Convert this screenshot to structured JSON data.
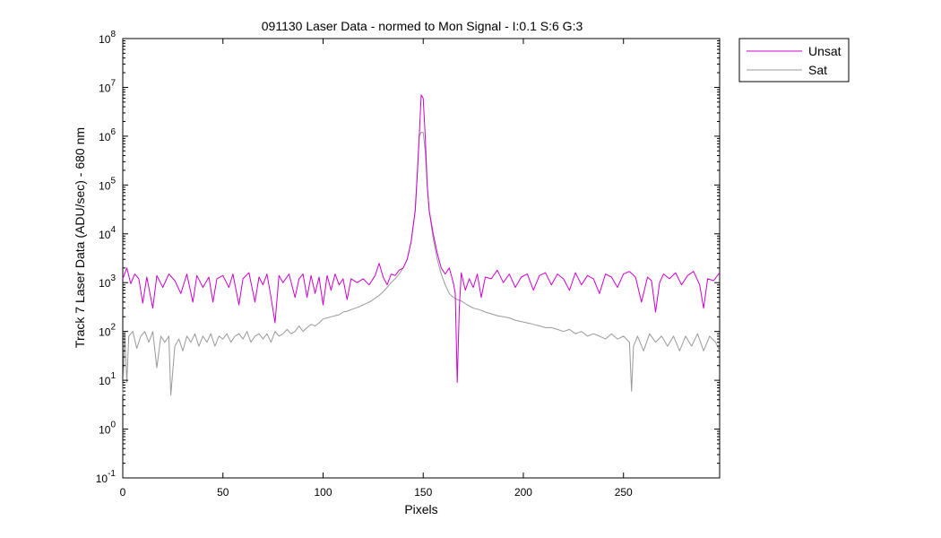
{
  "chart_data": {
    "type": "line",
    "title": "091130 Laser Data - normed to Mon Signal -   I:0.1  S:6  G:3",
    "xlabel": "Pixels",
    "ylabel": "Track 7 Laser Data (ADU/sec) - 680 nm",
    "xlim": [
      0,
      298
    ],
    "ylim": [
      0.1,
      100000000
    ],
    "yscale": "log",
    "grid": false,
    "legend_position": "outside-top-right",
    "xticks": [
      0,
      50,
      100,
      150,
      200,
      250
    ],
    "xtick_labels": [
      "0",
      "50",
      "100",
      "150",
      "200",
      "250"
    ],
    "ytick_exponents": [
      -1,
      0,
      1,
      2,
      3,
      4,
      5,
      6,
      7,
      8
    ],
    "ytick_base": "10",
    "series": [
      {
        "name": "Unsat",
        "color": "#cc00cc",
        "points": [
          [
            0,
            1200
          ],
          [
            2,
            2000
          ],
          [
            4,
            950
          ],
          [
            6,
            1500
          ],
          [
            8,
            1200
          ],
          [
            10,
            380
          ],
          [
            12,
            1300
          ],
          [
            15,
            300
          ],
          [
            17,
            1400
          ],
          [
            20,
            800
          ],
          [
            23,
            1500
          ],
          [
            26,
            1100
          ],
          [
            29,
            600
          ],
          [
            32,
            1500
          ],
          [
            35,
            400
          ],
          [
            37,
            1400
          ],
          [
            40,
            800
          ],
          [
            43,
            1300
          ],
          [
            45,
            400
          ],
          [
            47,
            1200
          ],
          [
            50,
            1400
          ],
          [
            53,
            800
          ],
          [
            55,
            1500
          ],
          [
            58,
            350
          ],
          [
            60,
            1200
          ],
          [
            63,
            1600
          ],
          [
            66,
            400
          ],
          [
            68,
            1300
          ],
          [
            70,
            900
          ],
          [
            72,
            1500
          ],
          [
            74,
            500
          ],
          [
            76,
            150
          ],
          [
            78,
            1400
          ],
          [
            80,
            1000
          ],
          [
            83,
            1500
          ],
          [
            86,
            500
          ],
          [
            88,
            1200
          ],
          [
            90,
            1500
          ],
          [
            92,
            500
          ],
          [
            94,
            1400
          ],
          [
            96,
            600
          ],
          [
            98,
            1300
          ],
          [
            100,
            350
          ],
          [
            102,
            1400
          ],
          [
            104,
            700
          ],
          [
            106,
            1500
          ],
          [
            108,
            900
          ],
          [
            110,
            1200
          ],
          [
            112,
            450
          ],
          [
            114,
            1200
          ],
          [
            117,
            1000
          ],
          [
            120,
            1200
          ],
          [
            123,
            900
          ],
          [
            126,
            1400
          ],
          [
            128,
            2500
          ],
          [
            130,
            1300
          ],
          [
            132,
            900
          ],
          [
            134,
            1500
          ],
          [
            136,
            1400
          ],
          [
            138,
            1800
          ],
          [
            140,
            2000
          ],
          [
            142,
            3000
          ],
          [
            144,
            7000
          ],
          [
            146,
            30000
          ],
          [
            147,
            150000
          ],
          [
            148,
            1000000
          ],
          [
            149,
            7000000
          ],
          [
            150,
            6000000
          ],
          [
            151,
            1000000
          ],
          [
            152,
            100000
          ],
          [
            153,
            30000
          ],
          [
            155,
            10000
          ],
          [
            157,
            4000
          ],
          [
            159,
            2000
          ],
          [
            161,
            1500
          ],
          [
            163,
            2000
          ],
          [
            165,
            1000
          ],
          [
            166,
            600
          ],
          [
            167,
            9
          ],
          [
            168,
            300
          ],
          [
            169,
            1600
          ],
          [
            171,
            700
          ],
          [
            173,
            1200
          ],
          [
            175,
            800
          ],
          [
            177,
            1500
          ],
          [
            179,
            500
          ],
          [
            181,
            1300
          ],
          [
            184,
            1200
          ],
          [
            187,
            1800
          ],
          [
            190,
            1000
          ],
          [
            193,
            1500
          ],
          [
            196,
            800
          ],
          [
            199,
            1300
          ],
          [
            202,
            1500
          ],
          [
            205,
            700
          ],
          [
            208,
            1400
          ],
          [
            211,
            1600
          ],
          [
            214,
            900
          ],
          [
            217,
            1500
          ],
          [
            220,
            1200
          ],
          [
            223,
            700
          ],
          [
            226,
            1600
          ],
          [
            229,
            900
          ],
          [
            232,
            1400
          ],
          [
            235,
            1200
          ],
          [
            238,
            600
          ],
          [
            241,
            1500
          ],
          [
            244,
            1300
          ],
          [
            247,
            800
          ],
          [
            250,
            1500
          ],
          [
            253,
            1700
          ],
          [
            256,
            1300
          ],
          [
            259,
            400
          ],
          [
            262,
            1300
          ],
          [
            264,
            1100
          ],
          [
            266,
            250
          ],
          [
            268,
            1000
          ],
          [
            270,
            1500
          ],
          [
            273,
            1200
          ],
          [
            276,
            1600
          ],
          [
            279,
            900
          ],
          [
            282,
            1400
          ],
          [
            285,
            1700
          ],
          [
            288,
            900
          ],
          [
            290,
            300
          ],
          [
            292,
            1200
          ],
          [
            295,
            1100
          ],
          [
            298,
            1600
          ]
        ]
      },
      {
        "name": "Sat",
        "color": "#999999",
        "points": [
          [
            0,
            5
          ],
          [
            1,
            100
          ],
          [
            2,
            9
          ],
          [
            3,
            80
          ],
          [
            5,
            100
          ],
          [
            7,
            45
          ],
          [
            9,
            80
          ],
          [
            11,
            100
          ],
          [
            13,
            60
          ],
          [
            15,
            100
          ],
          [
            17,
            18
          ],
          [
            19,
            80
          ],
          [
            21,
            60
          ],
          [
            23,
            80
          ],
          [
            24,
            5
          ],
          [
            26,
            50
          ],
          [
            28,
            70
          ],
          [
            30,
            40
          ],
          [
            32,
            80
          ],
          [
            34,
            60
          ],
          [
            36,
            90
          ],
          [
            38,
            50
          ],
          [
            40,
            80
          ],
          [
            42,
            60
          ],
          [
            44,
            90
          ],
          [
            46,
            50
          ],
          [
            48,
            80
          ],
          [
            50,
            70
          ],
          [
            52,
            90
          ],
          [
            54,
            60
          ],
          [
            56,
            80
          ],
          [
            58,
            90
          ],
          [
            60,
            70
          ],
          [
            62,
            100
          ],
          [
            64,
            60
          ],
          [
            66,
            80
          ],
          [
            68,
            90
          ],
          [
            70,
            70
          ],
          [
            72,
            90
          ],
          [
            74,
            60
          ],
          [
            76,
            100
          ],
          [
            78,
            80
          ],
          [
            80,
            90
          ],
          [
            82,
            110
          ],
          [
            84,
            90
          ],
          [
            86,
            100
          ],
          [
            88,
            130
          ],
          [
            90,
            100
          ],
          [
            92,
            120
          ],
          [
            94,
            140
          ],
          [
            96,
            130
          ],
          [
            98,
            150
          ],
          [
            100,
            180
          ],
          [
            102,
            190
          ],
          [
            104,
            200
          ],
          [
            106,
            210
          ],
          [
            108,
            220
          ],
          [
            110,
            250
          ],
          [
            112,
            260
          ],
          [
            114,
            280
          ],
          [
            116,
            300
          ],
          [
            118,
            320
          ],
          [
            120,
            350
          ],
          [
            122,
            380
          ],
          [
            124,
            420
          ],
          [
            126,
            480
          ],
          [
            128,
            550
          ],
          [
            130,
            650
          ],
          [
            132,
            800
          ],
          [
            134,
            1000
          ],
          [
            136,
            1200
          ],
          [
            138,
            1500
          ],
          [
            140,
            2000
          ],
          [
            142,
            3000
          ],
          [
            144,
            7000
          ],
          [
            146,
            30000
          ],
          [
            147,
            150000
          ],
          [
            148,
            1000000
          ],
          [
            149,
            1200000
          ],
          [
            150,
            1200000
          ],
          [
            151,
            500000
          ],
          [
            152,
            100000
          ],
          [
            153,
            30000
          ],
          [
            155,
            8000
          ],
          [
            157,
            3000
          ],
          [
            159,
            1500
          ],
          [
            161,
            900
          ],
          [
            163,
            600
          ],
          [
            165,
            500
          ],
          [
            167,
            450
          ],
          [
            169,
            420
          ],
          [
            172,
            350
          ],
          [
            175,
            300
          ],
          [
            178,
            280
          ],
          [
            181,
            250
          ],
          [
            184,
            230
          ],
          [
            187,
            210
          ],
          [
            190,
            200
          ],
          [
            193,
            190
          ],
          [
            196,
            170
          ],
          [
            199,
            160
          ],
          [
            202,
            150
          ],
          [
            205,
            140
          ],
          [
            208,
            130
          ],
          [
            211,
            120
          ],
          [
            214,
            120
          ],
          [
            217,
            110
          ],
          [
            220,
            100
          ],
          [
            223,
            110
          ],
          [
            226,
            90
          ],
          [
            229,
            100
          ],
          [
            232,
            80
          ],
          [
            235,
            90
          ],
          [
            238,
            80
          ],
          [
            241,
            70
          ],
          [
            244,
            90
          ],
          [
            247,
            70
          ],
          [
            250,
            80
          ],
          [
            253,
            60
          ],
          [
            254,
            6
          ],
          [
            255,
            50
          ],
          [
            257,
            80
          ],
          [
            260,
            40
          ],
          [
            263,
            90
          ],
          [
            266,
            60
          ],
          [
            269,
            80
          ],
          [
            272,
            50
          ],
          [
            275,
            80
          ],
          [
            278,
            40
          ],
          [
            281,
            80
          ],
          [
            284,
            50
          ],
          [
            287,
            90
          ],
          [
            290,
            40
          ],
          [
            293,
            80
          ],
          [
            296,
            60
          ],
          [
            298,
            40
          ]
        ]
      }
    ]
  }
}
